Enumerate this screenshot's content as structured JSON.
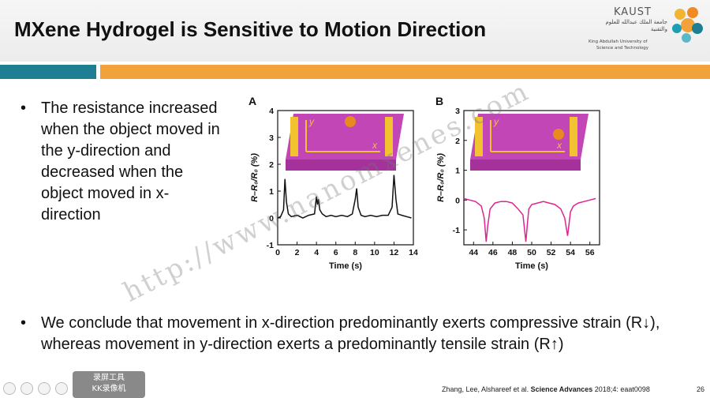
{
  "slide": {
    "title": "MXene Hydrogel is Sensitive to Motion Direction",
    "bullet1": "The resistance increased when the object moved in the y-direction and decreased when the object moved in x-direction",
    "bullet2": "We conclude that  movement in x-direction predominantly exerts compressive strain (R↓), whereas movement in y-direction exerts a predominantly tensile strain (R↑)",
    "bullet_symbol": "•",
    "citation_prefix": "Zhang, Lee, Alshareef et al. ",
    "citation_journal": "Science Advances",
    "citation_suffix": " 2018;4: eaat0098",
    "slide_number": "26",
    "watermark": "http://www.nanomxenes.com"
  },
  "logo": {
    "name": "KAUST",
    "arabic": "جامعة الملك عبدالله للعلوم والتقنية",
    "english_line1": "King Abdullah University of",
    "english_line2": "Science and Technology"
  },
  "overlay": {
    "line1": "录屏工具",
    "line2": "KK录像机"
  },
  "chart_data": [
    {
      "type": "line",
      "label": "A",
      "xlabel": "Time (s)",
      "ylabel": "R–R₀/R₀ (%)",
      "xlim": [
        0,
        14
      ],
      "ylim": [
        -1,
        4
      ],
      "xticks": [
        0,
        2,
        4,
        6,
        8,
        10,
        12,
        14
      ],
      "yticks": [
        -1,
        0,
        1,
        2,
        3,
        4
      ],
      "inset_axes": [
        "y",
        "x"
      ],
      "x": [
        0,
        0.3,
        0.6,
        0.75,
        0.9,
        1.1,
        1.4,
        2,
        2.6,
        3.2,
        3.8,
        4.0,
        4.1,
        4.2,
        4.35,
        4.6,
        5,
        5.5,
        6,
        6.6,
        7.2,
        7.7,
        8.0,
        8.15,
        8.3,
        8.6,
        9,
        9.6,
        10.2,
        10.8,
        11.4,
        11.8,
        12.0,
        12.2,
        12.4,
        12.8,
        13.3,
        13.8
      ],
      "y": [
        0,
        0.05,
        0.3,
        1.45,
        0.6,
        0.15,
        0.05,
        0.1,
        0.0,
        0.1,
        0.15,
        0.8,
        0.5,
        0.7,
        0.3,
        0.15,
        0.05,
        0.1,
        0.05,
        0.1,
        0.05,
        0.15,
        0.7,
        1.1,
        0.4,
        0.1,
        0.05,
        0.1,
        0.05,
        0.1,
        0.1,
        0.4,
        1.6,
        0.7,
        0.15,
        0.1,
        0.05,
        0.0
      ]
    },
    {
      "type": "line",
      "label": "B",
      "xlabel": "Time (s)",
      "ylabel": "R–R₀/R₀ (%)",
      "xlim": [
        43,
        57
      ],
      "ylim": [
        -1.5,
        3
      ],
      "xticks": [
        44,
        46,
        48,
        50,
        52,
        54,
        56
      ],
      "yticks": [
        -1,
        0,
        1,
        2,
        3
      ],
      "inset_axes": [
        "y",
        "x"
      ],
      "x": [
        43,
        43.6,
        44.2,
        44.8,
        45.1,
        45.3,
        45.45,
        45.7,
        46.2,
        46.8,
        47.4,
        48,
        48.6,
        49.1,
        49.4,
        49.55,
        49.7,
        50,
        50.6,
        51.2,
        51.8,
        52.4,
        53,
        53.4,
        53.7,
        53.85,
        54.0,
        54.3,
        54.8,
        55.4,
        56,
        56.6
      ],
      "y": [
        0.05,
        0.0,
        -0.05,
        -0.2,
        -0.6,
        -1.4,
        -0.9,
        -0.3,
        -0.1,
        -0.05,
        -0.05,
        -0.1,
        -0.3,
        -0.5,
        -1.4,
        -0.8,
        -0.3,
        -0.15,
        -0.1,
        -0.05,
        -0.1,
        -0.15,
        -0.3,
        -0.6,
        -1.2,
        -0.8,
        -0.4,
        -0.2,
        -0.1,
        -0.05,
        0.0,
        0.05
      ]
    }
  ]
}
